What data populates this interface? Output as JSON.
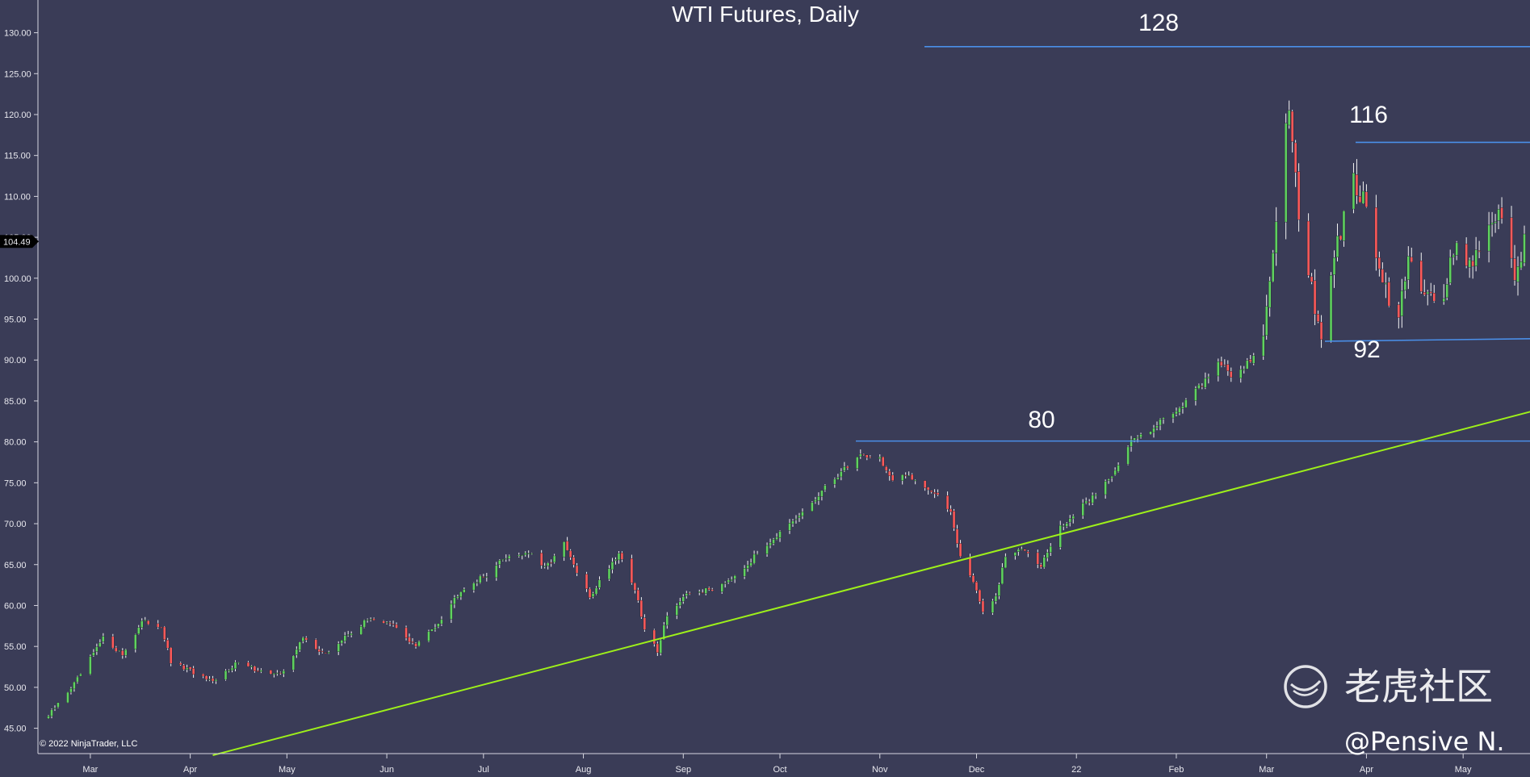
{
  "chart_data": {
    "type": "candlestick",
    "title": "WTI Futures, Daily",
    "ylim": [
      42,
      134
    ],
    "y_ticks": [
      "130.00",
      "125.00",
      "120.00",
      "115.00",
      "110.00",
      "105.00",
      "100.00",
      "95.00",
      "90.00",
      "85.00",
      "80.00",
      "75.00",
      "70.00",
      "65.00",
      "60.00",
      "55.00",
      "50.00",
      "45.00"
    ],
    "x_ticks": [
      "Mar",
      "Apr",
      "May",
      "Jun",
      "Jul",
      "Aug",
      "Sep",
      "Oct",
      "Nov",
      "Dec",
      "22",
      "Feb",
      "Mar",
      "Apr",
      "May"
    ],
    "current_price": "104.49",
    "current_value": 104.49,
    "copyright": "© 2022 NinjaTrader, LLC",
    "levels": [
      {
        "label": "128",
        "value": 128.3
      },
      {
        "label": "116",
        "value": 116.6
      },
      {
        "label": "92",
        "value": 92.3
      },
      {
        "label": "80",
        "value": 80.1
      }
    ],
    "trendline": {
      "from": {
        "date": "2021-04-08",
        "value": 41.7
      },
      "to": {
        "date": "2022-05-22",
        "value": 83.7
      }
    },
    "anchors": [
      [
        "2021-02-16",
        46.5
      ],
      [
        "2021-02-25",
        51
      ],
      [
        "2021-03-05",
        56
      ],
      [
        "2021-03-11",
        54
      ],
      [
        "2021-03-17",
        58
      ],
      [
        "2021-03-23",
        57.5
      ],
      [
        "2021-03-26",
        53
      ],
      [
        "2021-04-01",
        52
      ],
      [
        "2021-04-08",
        50.5
      ],
      [
        "2021-04-15",
        53
      ],
      [
        "2021-04-23",
        52
      ],
      [
        "2021-04-29",
        51.5
      ],
      [
        "2021-05-06",
        56
      ],
      [
        "2021-05-13",
        54
      ],
      [
        "2021-05-20",
        56.5
      ],
      [
        "2021-05-27",
        58.5
      ],
      [
        "2021-06-03",
        57.5
      ],
      [
        "2021-06-10",
        55
      ],
      [
        "2021-06-17",
        58
      ],
      [
        "2021-06-24",
        62
      ],
      [
        "2021-07-01",
        63.5
      ],
      [
        "2021-07-08",
        66
      ],
      [
        "2021-07-15",
        66.5
      ],
      [
        "2021-07-20",
        64.5
      ],
      [
        "2021-07-26",
        67.5
      ],
      [
        "2021-07-30",
        64
      ],
      [
        "2021-08-03",
        61
      ],
      [
        "2021-08-06",
        63
      ],
      [
        "2021-08-12",
        66.5
      ],
      [
        "2021-08-17",
        62
      ],
      [
        "2021-08-20",
        57
      ],
      [
        "2021-08-24",
        54.5
      ],
      [
        "2021-08-27",
        59
      ],
      [
        "2021-09-03",
        61.5
      ],
      [
        "2021-09-10",
        62
      ],
      [
        "2021-09-16",
        63.5
      ],
      [
        "2021-09-22",
        65.5
      ],
      [
        "2021-09-28",
        68
      ],
      [
        "2021-10-05",
        70
      ],
      [
        "2021-10-12",
        73
      ],
      [
        "2021-10-19",
        76
      ],
      [
        "2021-10-26",
        78.5
      ],
      [
        "2021-11-01",
        78
      ],
      [
        "2021-11-05",
        75
      ],
      [
        "2021-11-10",
        76
      ],
      [
        "2021-11-17",
        74
      ],
      [
        "2021-11-23",
        71.5
      ],
      [
        "2021-11-26",
        66
      ],
      [
        "2021-12-01",
        62
      ],
      [
        "2021-12-03",
        59
      ],
      [
        "2021-12-07",
        61
      ],
      [
        "2021-12-10",
        66
      ],
      [
        "2021-12-16",
        67
      ],
      [
        "2021-12-21",
        65
      ],
      [
        "2021-12-27",
        69.5
      ],
      [
        "2022-01-04",
        72.5
      ],
      [
        "2022-01-11",
        75.5
      ],
      [
        "2022-01-18",
        80
      ],
      [
        "2022-01-25",
        82
      ],
      [
        "2022-02-01",
        84
      ],
      [
        "2022-02-08",
        86.5
      ],
      [
        "2022-02-14",
        90
      ],
      [
        "2022-02-18",
        88
      ],
      [
        "2022-02-24",
        90
      ],
      [
        "2022-02-28",
        92
      ],
      [
        "2022-03-03",
        104
      ],
      [
        "2022-03-08",
        122
      ],
      [
        "2022-03-11",
        108
      ],
      [
        "2022-03-16",
        96
      ],
      [
        "2022-03-18",
        93
      ],
      [
        "2022-03-23",
        104
      ],
      [
        "2022-03-28",
        112
      ],
      [
        "2022-04-01",
        109
      ],
      [
        "2022-04-06",
        99
      ],
      [
        "2022-04-11",
        95
      ],
      [
        "2022-04-14",
        102
      ],
      [
        "2022-04-19",
        99
      ],
      [
        "2022-04-25",
        97
      ],
      [
        "2022-04-28",
        104
      ],
      [
        "2022-05-03",
        102
      ],
      [
        "2022-05-09",
        106
      ],
      [
        "2022-05-12",
        108
      ],
      [
        "2022-05-17",
        100
      ],
      [
        "2022-05-20",
        104.5
      ]
    ]
  },
  "watermark": {
    "brand_text": "老虎社区",
    "author": "@Pensive N."
  }
}
